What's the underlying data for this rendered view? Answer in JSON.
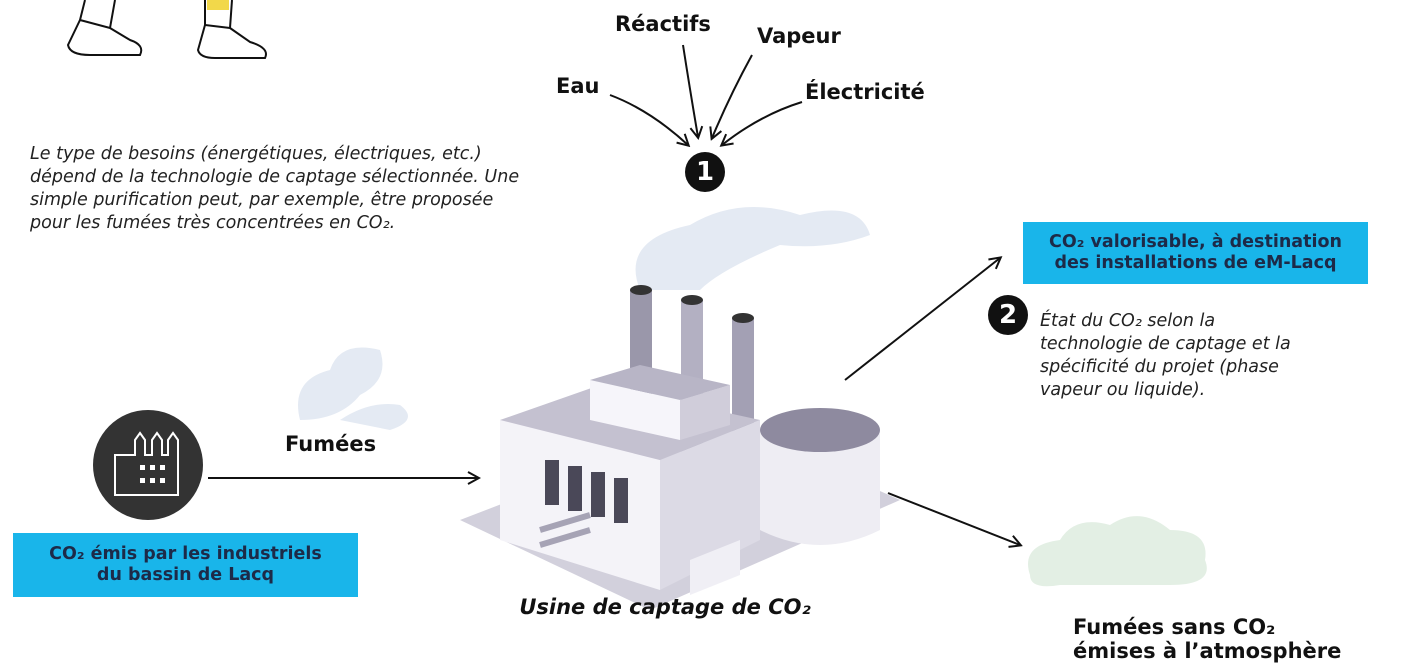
{
  "inputs": {
    "items": [
      "Eau",
      "Réactifs",
      "Vapeur",
      "Électricité"
    ],
    "badge": "1",
    "note": [
      "Le type de besoins (énergétiques, électriques, etc.)",
      "dépend de la technologie de captage sélectionnée. Une",
      "simple purification peut, par exemple, être proposée",
      "pour les fumées très concentrées en CO₂."
    ]
  },
  "source": {
    "label": [
      "CO₂ émis par les industriels",
      "du bassin de Lacq"
    ],
    "flow": "Fumées"
  },
  "plant": {
    "label": "Usine de captage de CO₂"
  },
  "output_valorisable": {
    "label": [
      "CO₂ valorisable, à destination",
      "des installations de eM-Lacq"
    ],
    "badge": "2",
    "note": [
      "État du CO₂ selon la",
      "technologie de captage et la",
      "spécificité du projet (phase",
      "vapeur ou liquide)."
    ]
  },
  "output_atmosphere": {
    "label": [
      "Fumées sans CO₂",
      "émises à l’atmosphère"
    ]
  }
}
